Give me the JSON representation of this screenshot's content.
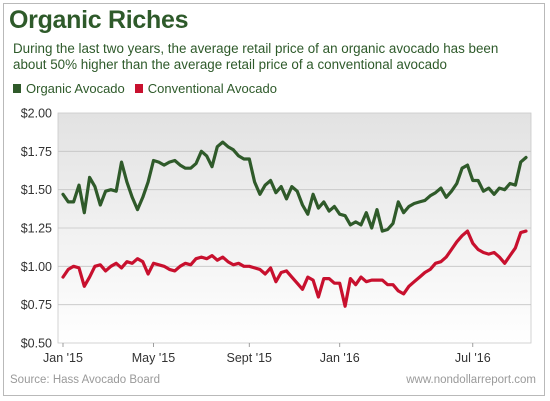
{
  "title": "Organic Riches",
  "subtitle": "During the last two years, the average retail price of an organic avocado has been about 50% higher than the average retail price of a conventional avocado",
  "source": "Source: Hass Avocado Board",
  "website": "www.nondollarreport.com",
  "colors": {
    "organic": "#2f5a2a",
    "conventional": "#c8102e",
    "title": "#2e5a2a"
  },
  "chart_data": {
    "type": "line",
    "title": "",
    "xlabel": "",
    "ylabel": "",
    "ylim": [
      0.5,
      2.0
    ],
    "yticks": [
      "$2.00",
      "$1.75",
      "$1.50",
      "$1.25",
      "$1.00",
      "$0.75",
      "$0.50"
    ],
    "ytick_values": [
      2.0,
      1.75,
      1.5,
      1.25,
      1.0,
      0.75,
      0.5
    ],
    "xticks": [
      "Jan '15",
      "May '15",
      "Sept '15",
      "Jan '16",
      "Jul '16"
    ],
    "xtick_weeks": [
      0,
      17,
      35,
      52,
      77
    ],
    "grid": true,
    "legend_position": "top-left",
    "x": [
      0,
      1,
      2,
      3,
      4,
      5,
      6,
      7,
      8,
      9,
      10,
      11,
      12,
      13,
      14,
      15,
      16,
      17,
      18,
      19,
      20,
      21,
      22,
      23,
      24,
      25,
      26,
      27,
      28,
      29,
      30,
      31,
      32,
      33,
      34,
      35,
      36,
      37,
      38,
      39,
      40,
      41,
      42,
      43,
      44,
      45,
      46,
      47,
      48,
      49,
      50,
      51,
      52,
      53,
      54,
      55,
      56,
      57,
      58,
      59,
      60,
      61,
      62,
      63,
      64,
      65,
      66,
      67,
      68,
      69,
      70,
      71,
      72,
      73,
      74,
      75,
      76,
      77,
      78,
      79,
      80,
      81,
      82,
      83,
      84,
      85,
      86,
      87
    ],
    "series": [
      {
        "name": "Organic Avocado",
        "values": [
          1.47,
          1.42,
          1.42,
          1.53,
          1.35,
          1.58,
          1.52,
          1.4,
          1.49,
          1.5,
          1.49,
          1.68,
          1.55,
          1.45,
          1.37,
          1.45,
          1.55,
          1.69,
          1.68,
          1.66,
          1.68,
          1.69,
          1.66,
          1.64,
          1.64,
          1.67,
          1.75,
          1.72,
          1.65,
          1.78,
          1.81,
          1.78,
          1.76,
          1.72,
          1.7,
          1.7,
          1.55,
          1.47,
          1.53,
          1.56,
          1.48,
          1.52,
          1.44,
          1.52,
          1.49,
          1.4,
          1.34,
          1.47,
          1.38,
          1.42,
          1.36,
          1.39,
          1.34,
          1.33,
          1.27,
          1.29,
          1.27,
          1.35,
          1.25,
          1.37,
          1.23,
          1.24,
          1.28,
          1.42,
          1.35,
          1.39,
          1.41,
          1.42,
          1.43,
          1.46,
          1.48,
          1.51,
          1.45,
          1.49,
          1.54,
          1.64,
          1.66,
          1.56,
          1.56,
          1.49,
          1.51,
          1.47,
          1.51,
          1.5,
          1.54,
          1.53,
          1.68,
          1.71
        ]
      },
      {
        "name": "Conventional Avocado",
        "values": [
          0.93,
          0.98,
          1.0,
          0.99,
          0.87,
          0.93,
          1.0,
          1.01,
          0.97,
          1.0,
          1.02,
          0.99,
          1.03,
          1.02,
          1.05,
          1.03,
          0.95,
          1.02,
          1.01,
          1.0,
          0.98,
          0.97,
          1.0,
          1.02,
          1.01,
          1.05,
          1.06,
          1.05,
          1.07,
          1.04,
          1.06,
          1.03,
          1.01,
          1.02,
          1.0,
          1.0,
          0.99,
          0.98,
          0.95,
          0.99,
          0.9,
          0.96,
          0.97,
          0.93,
          0.89,
          0.85,
          0.93,
          0.91,
          0.8,
          0.92,
          0.92,
          0.89,
          0.89,
          0.74,
          0.92,
          0.88,
          0.93,
          0.9,
          0.91,
          0.91,
          0.91,
          0.88,
          0.88,
          0.84,
          0.82,
          0.87,
          0.9,
          0.93,
          0.96,
          0.98,
          1.02,
          1.03,
          1.06,
          1.11,
          1.16,
          1.2,
          1.23,
          1.15,
          1.11,
          1.09,
          1.08,
          1.09,
          1.06,
          1.02,
          1.07,
          1.12,
          1.22,
          1.23
        ]
      }
    ]
  }
}
